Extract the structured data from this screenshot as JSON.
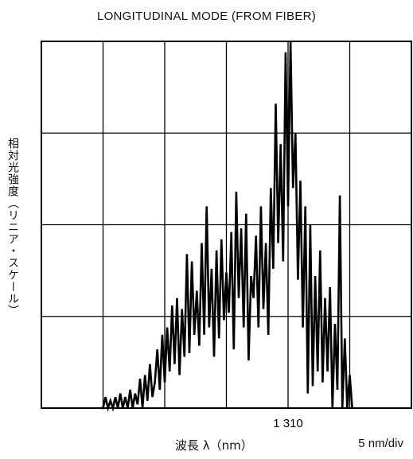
{
  "chart_data": {
    "type": "line",
    "title": "LONGITUDINAL MODE (FROM FIBER)",
    "ylabel": "相対光強度（リニア・スケール）",
    "xlabel": "波長 λ（nm）",
    "scale_label": "5 nm/div",
    "x_ticks": [
      {
        "value": 1310,
        "label": "1 310"
      }
    ],
    "xlim": [
      1290,
      1320
    ],
    "ylim": [
      0,
      1.0
    ],
    "grid": true,
    "divisions": {
      "x": 6,
      "y": 4
    },
    "series": [
      {
        "color": "#000000",
        "x": [
          1294.8,
          1295.0,
          1295.2,
          1295.4,
          1295.6,
          1295.8,
          1296.0,
          1296.2,
          1296.4,
          1296.6,
          1296.8,
          1297.0,
          1297.2,
          1297.4,
          1297.6,
          1297.8,
          1298.0,
          1298.2,
          1298.4,
          1298.6,
          1298.8,
          1299.0,
          1299.2,
          1299.4,
          1299.6,
          1299.8,
          1300.0,
          1300.2,
          1300.4,
          1300.6,
          1300.8,
          1301.0,
          1301.2,
          1301.4,
          1301.6,
          1301.8,
          1302.0,
          1302.2,
          1302.4,
          1302.6,
          1302.8,
          1303.0,
          1303.2,
          1303.4,
          1303.6,
          1303.8,
          1304.0,
          1304.2,
          1304.4,
          1304.6,
          1304.8,
          1305.0,
          1305.2,
          1305.4,
          1305.6,
          1305.8,
          1306.0,
          1306.2,
          1306.4,
          1306.6,
          1306.8,
          1307.0,
          1307.2,
          1307.4,
          1307.6,
          1307.8,
          1308.0,
          1308.2,
          1308.4,
          1308.6,
          1308.8,
          1309.0,
          1309.2,
          1309.4,
          1309.6,
          1309.8,
          1310.0,
          1310.2,
          1310.4,
          1310.6,
          1310.8,
          1311.0,
          1311.2,
          1311.4,
          1311.6,
          1311.8,
          1312.0,
          1312.2,
          1312.4,
          1312.6,
          1312.8,
          1313.0,
          1313.2,
          1313.4,
          1313.6,
          1313.8,
          1314.0,
          1314.2,
          1314.4,
          1314.6,
          1314.8,
          1315.0,
          1315.2
        ],
        "y": [
          0.0,
          0.0,
          0.03,
          0.0,
          0.02,
          0.0,
          0.03,
          0.0,
          0.04,
          0.0,
          0.03,
          0.0,
          0.05,
          0.0,
          0.04,
          0.01,
          0.08,
          0.0,
          0.09,
          0.02,
          0.12,
          0.03,
          0.07,
          0.16,
          0.05,
          0.2,
          0.07,
          0.22,
          0.1,
          0.28,
          0.12,
          0.3,
          0.09,
          0.27,
          0.14,
          0.42,
          0.15,
          0.4,
          0.2,
          0.32,
          0.17,
          0.45,
          0.2,
          0.55,
          0.22,
          0.38,
          0.14,
          0.43,
          0.19,
          0.46,
          0.24,
          0.37,
          0.26,
          0.48,
          0.16,
          0.59,
          0.3,
          0.49,
          0.22,
          0.53,
          0.13,
          0.36,
          0.3,
          0.47,
          0.22,
          0.55,
          0.27,
          0.45,
          0.2,
          0.6,
          0.38,
          0.83,
          0.45,
          0.72,
          0.4,
          0.97,
          0.55,
          1.0,
          0.6,
          0.75,
          0.35,
          0.62,
          0.22,
          0.55,
          0.04,
          0.5,
          0.06,
          0.36,
          0.1,
          0.43,
          0.07,
          0.3,
          0.1,
          0.33,
          0.0,
          0.23,
          0.05,
          0.58,
          0.0,
          0.19,
          0.0,
          0.09,
          0.0
        ]
      }
    ]
  }
}
